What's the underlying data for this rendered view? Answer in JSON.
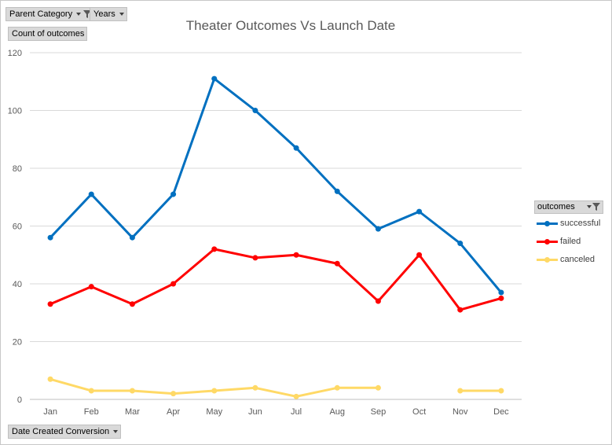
{
  "pivot_fields": {
    "parent_category": "Parent Category",
    "years": "Years",
    "count_of_outcomes": "Count of outcomes",
    "date_created_conversion": "Date Created Conversion"
  },
  "legend": {
    "title": "outcomes"
  },
  "chart_data": {
    "type": "line",
    "title": "Theater Outcomes Vs Launch Date",
    "xlabel": "",
    "ylabel": "",
    "categories": [
      "Jan",
      "Feb",
      "Mar",
      "Apr",
      "May",
      "Jun",
      "Jul",
      "Aug",
      "Sep",
      "Oct",
      "Nov",
      "Dec"
    ],
    "ylim": [
      0,
      120
    ],
    "yticks": [
      0,
      20,
      40,
      60,
      80,
      100,
      120
    ],
    "grid": true,
    "legend_position": "right",
    "series": [
      {
        "name": "successful",
        "color": "#0070c0",
        "values": [
          56,
          71,
          56,
          71,
          111,
          100,
          87,
          72,
          59,
          65,
          54,
          37
        ]
      },
      {
        "name": "failed",
        "color": "#ff0000",
        "values": [
          33,
          39,
          33,
          40,
          52,
          49,
          50,
          47,
          34,
          50,
          31,
          35
        ]
      },
      {
        "name": "canceled",
        "color": "#ffd966",
        "values": [
          7,
          3,
          3,
          2,
          3,
          4,
          1,
          4,
          4,
          null,
          3,
          3
        ]
      }
    ]
  }
}
